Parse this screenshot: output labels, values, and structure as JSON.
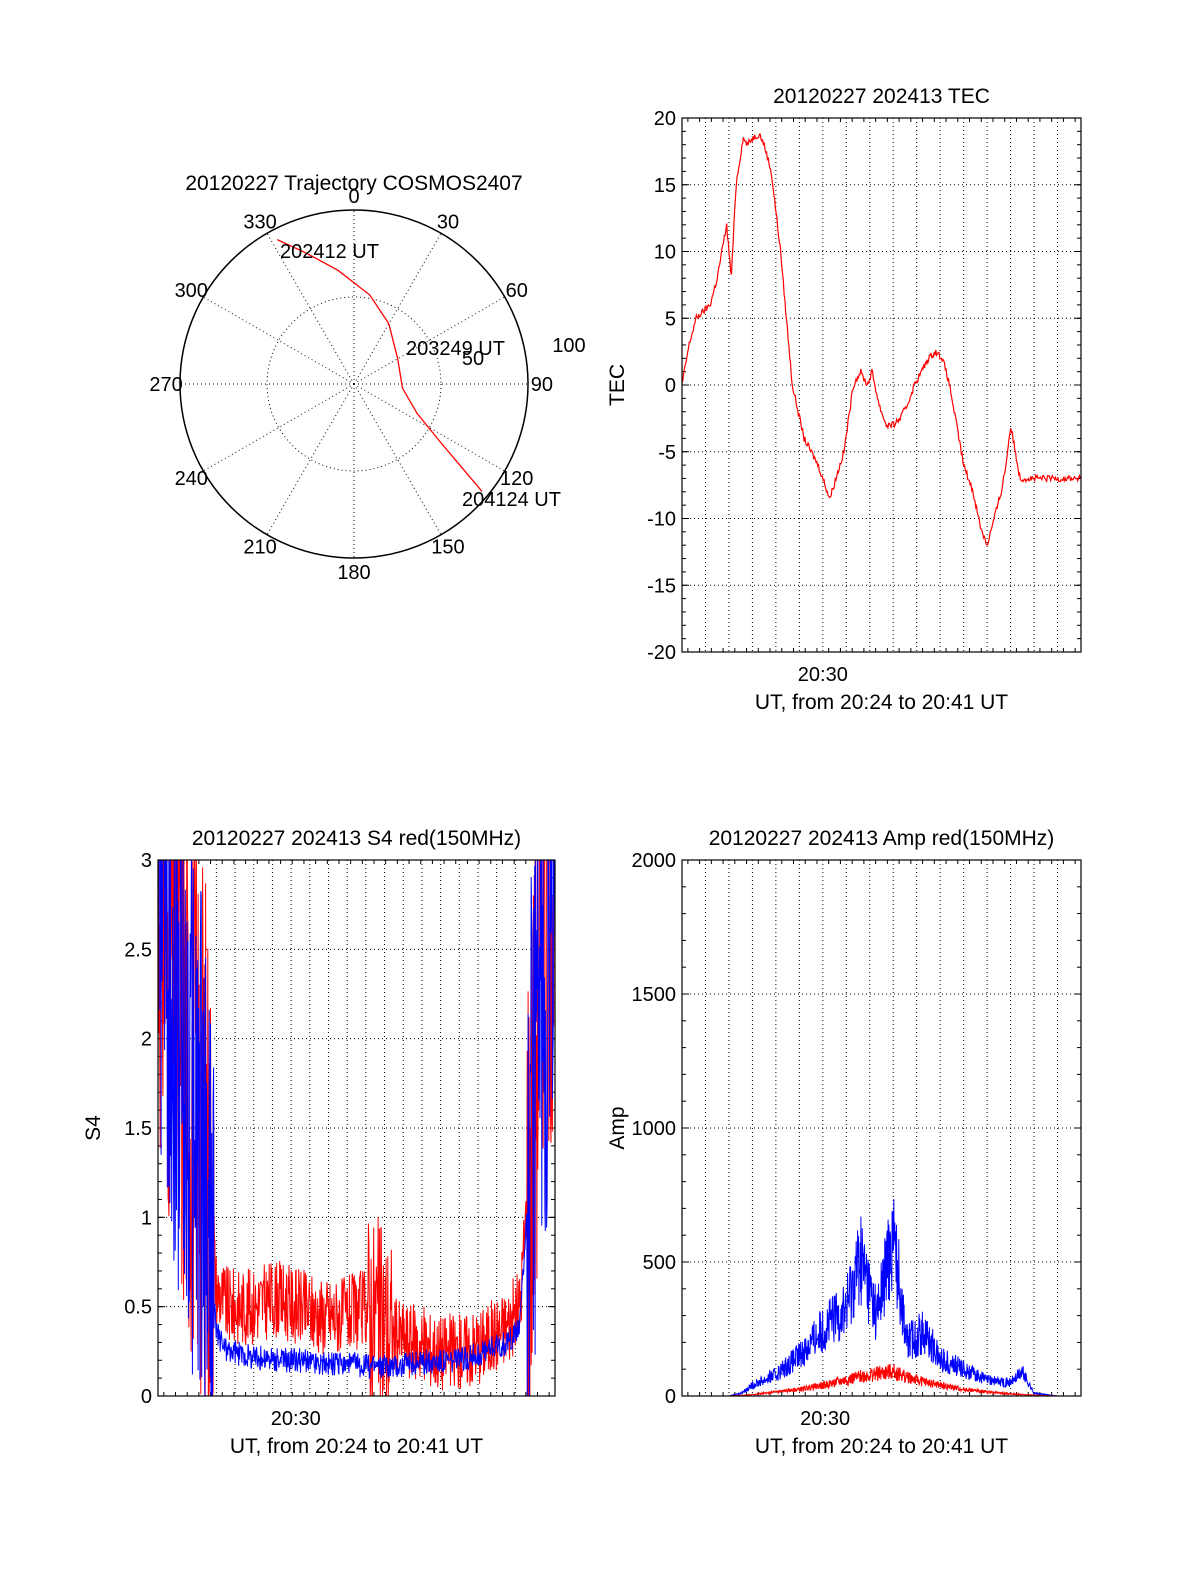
{
  "chart_data": [
    {
      "type": "polar",
      "title": "20120227 Trajectory COSMOS2407",
      "azimuth_labels": [
        "0",
        "30",
        "60",
        "90",
        "120",
        "150",
        "180",
        "210",
        "240",
        "270",
        "300",
        "330"
      ],
      "radial_labels": [
        "50",
        "100"
      ],
      "trajectory": {
        "color": "#ff0000",
        "points": [
          {
            "az": 332,
            "r": 94
          },
          {
            "az": 340,
            "r": 80
          },
          {
            "az": 352,
            "r": 66
          },
          {
            "az": 10,
            "r": 52
          },
          {
            "az": 30,
            "r": 40
          },
          {
            "az": 60,
            "r": 29
          },
          {
            "az": 95,
            "r": 28
          },
          {
            "az": 115,
            "r": 40
          },
          {
            "az": 124,
            "r": 60
          },
          {
            "az": 128,
            "r": 80
          },
          {
            "az": 130,
            "r": 96
          }
        ]
      },
      "annotations": [
        {
          "text": "202412 UT",
          "az": 336,
          "r": 87
        },
        {
          "text": "203249 UT",
          "az": 78,
          "r": 42
        },
        {
          "text": "204124 UT",
          "az": 128,
          "r": 104
        }
      ]
    },
    {
      "type": "line",
      "title": "20120227 202413 TEC",
      "xlabel": "UT, from 20:24 to 20:41 UT",
      "ylabel": "TEC",
      "xtick_labels": [
        "20:30"
      ],
      "ylim": [
        -20,
        20
      ],
      "yticks": [
        "20",
        "15",
        "10",
        "5",
        "0",
        "-5",
        "-10",
        "-15",
        "-20"
      ],
      "grid": true,
      "series": [
        {
          "color": "#ff0000",
          "x": [
            0,
            0.3,
            0.6,
            0.9,
            1.2,
            1.5,
            1.7,
            1.9,
            2.1,
            2.3,
            2.6,
            2.8,
            3.0,
            3.3,
            3.5,
            3.8,
            4.2,
            4.7,
            5.2,
            5.8,
            6.3,
            6.9,
            7.3,
            7.6,
            7.9,
            8.1,
            8.4,
            8.7,
            9.0,
            9.3,
            9.6,
            9.9,
            10.2,
            10.5,
            10.8,
            11.1,
            11.4,
            11.7,
            12.0,
            12.4,
            12.7,
            13.0,
            13.3,
            13.6,
            13.8,
            14.0,
            14.2,
            14.4,
            14.7,
            15.0,
            15.3,
            15.6,
            15.9,
            16.2,
            16.5,
            16.8,
            17.0
          ],
          "y": [
            0,
            3,
            5,
            5.5,
            6,
            8,
            10,
            12,
            8,
            15,
            18.5,
            18,
            18.5,
            18.8,
            18,
            16,
            10,
            0,
            -4,
            -6,
            -8.5,
            -5,
            0,
            1,
            0,
            1,
            -1.5,
            -3,
            -3,
            -2.5,
            -1.5,
            0,
            1,
            2,
            2.5,
            2,
            0,
            -3,
            -6,
            -8,
            -10.5,
            -12,
            -10,
            -8,
            -6,
            -3,
            -5,
            -7,
            -7,
            -7,
            -7,
            -7,
            -7,
            -7,
            -7,
            -7,
            -7
          ]
        }
      ]
    },
    {
      "type": "line",
      "title": "20120227 202413 S4 red(150MHz)",
      "xlabel": "UT, from 20:24 to 20:41 UT",
      "ylabel": "S4",
      "xtick_labels": [
        "20:30"
      ],
      "ylim": [
        0,
        3
      ],
      "yticks": [
        "3",
        "2.5",
        "2",
        "1.5",
        "1",
        "0.5",
        "0"
      ],
      "grid": true,
      "series": [
        {
          "color": "#ff0000",
          "x": [
            0,
            1,
            2,
            2.5,
            3,
            4,
            5,
            6,
            7,
            8,
            9,
            10,
            11,
            12,
            13,
            14,
            15,
            15.5,
            16,
            16.5,
            17
          ],
          "y": [
            3,
            2,
            1.5,
            0.6,
            0.5,
            0.5,
            0.55,
            0.5,
            0.45,
            0.45,
            0.5,
            0.35,
            0.3,
            0.25,
            0.25,
            0.3,
            0.4,
            0.5,
            1.5,
            3,
            3
          ]
        },
        {
          "color": "#0000ff",
          "x": [
            0,
            1,
            2,
            2.5,
            3,
            4,
            5,
            6,
            7,
            8,
            9,
            10,
            11,
            12,
            13,
            14,
            15,
            15.5,
            16,
            16.5,
            17
          ],
          "y": [
            3,
            2,
            1.3,
            0.35,
            0.25,
            0.22,
            0.2,
            0.2,
            0.18,
            0.18,
            0.17,
            0.17,
            0.18,
            0.2,
            0.2,
            0.25,
            0.3,
            0.4,
            1.5,
            2.5,
            2.5
          ]
        }
      ]
    },
    {
      "type": "line",
      "title": "20120227 202413 Amp red(150MHz)",
      "xlabel": "UT, from 20:24 to 20:41 UT",
      "ylabel": "Amp",
      "xtick_labels": [
        "20:30"
      ],
      "ylim": [
        0,
        2000
      ],
      "yticks": [
        "2000",
        "1500",
        "1000",
        "500",
        "0"
      ],
      "grid": true,
      "series": [
        {
          "color": "#0000ff",
          "x": [
            0,
            2,
            2.5,
            3,
            4,
            5,
            6,
            7,
            7.6,
            8.3,
            9,
            9.6,
            10.3,
            11,
            12,
            13,
            14,
            14.5,
            15,
            16,
            17
          ],
          "y": [
            0,
            0,
            10,
            40,
            80,
            150,
            250,
            330,
            520,
            300,
            600,
            200,
            240,
            140,
            100,
            60,
            50,
            90,
            10,
            0,
            0
          ]
        },
        {
          "color": "#ff0000",
          "x": [
            0,
            2,
            3,
            4,
            5,
            6,
            7,
            8,
            9,
            10,
            11,
            12,
            13,
            14,
            15,
            16,
            17
          ],
          "y": [
            0,
            0,
            5,
            15,
            25,
            40,
            60,
            80,
            90,
            60,
            40,
            25,
            15,
            8,
            3,
            0,
            0
          ]
        }
      ]
    }
  ]
}
